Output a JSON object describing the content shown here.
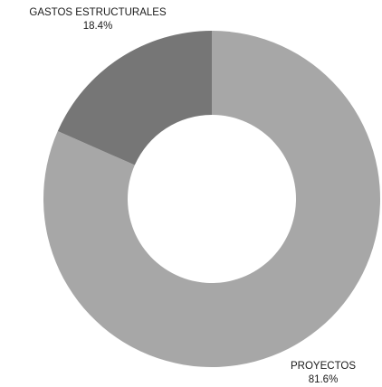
{
  "chart_data": {
    "type": "pie",
    "variant": "donut",
    "title": "",
    "legend": "none",
    "start_angle": "top",
    "direction": "clockwise",
    "slices": [
      {
        "label": "PROYECTOS",
        "value": 81.6,
        "value_label": "81.6%",
        "color": "#a7a7a7"
      },
      {
        "label": "GASTOS ESTRUCTURALES",
        "value": 18.4,
        "value_label": "18.4%",
        "color": "#767676"
      }
    ]
  }
}
